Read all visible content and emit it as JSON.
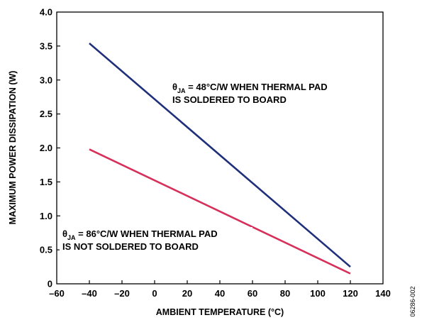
{
  "chart_data": {
    "type": "line",
    "title": "",
    "xlabel": "AMBIENT TEMPERATURE (°C)",
    "ylabel": "MAXIMUM POWER DISSIPATION (W)",
    "xlim": [
      -60,
      140
    ],
    "ylim": [
      0,
      4.0
    ],
    "xticks": [
      "–60",
      "–40",
      "–20",
      "0",
      "20",
      "40",
      "60",
      "80",
      "100",
      "120",
      "140"
    ],
    "yticks": [
      "0",
      "0.5",
      "1.0",
      "1.5",
      "2.0",
      "2.5",
      "3.0",
      "3.5",
      "4.0"
    ],
    "grid": false,
    "series": [
      {
        "x": [
          -40,
          120
        ],
        "y": [
          3.54,
          0.25
        ],
        "color": "#1f2f7a"
      },
      {
        "x": [
          -40,
          120
        ],
        "y": [
          1.98,
          0.15
        ],
        "color": "#d6305a"
      }
    ],
    "annotations": [
      {
        "symbol": "θ",
        "sub": "JA",
        "line1_rest": " = 48°C/W WHEN THERMAL PAD",
        "line2": "IS SOLDERED TO BOARD"
      },
      {
        "symbol": "θ",
        "sub": "JA",
        "line1_rest": " = 86°C/W WHEN THERMAL PAD",
        "line2": "IS NOT SOLDERED TO BOARD"
      }
    ],
    "figure_id": "06286-002"
  }
}
